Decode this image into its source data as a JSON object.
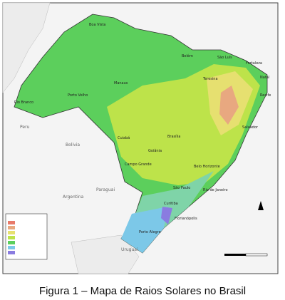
{
  "map": {
    "cities": [
      "Boa Vista",
      "Manaus",
      "Belém",
      "São Luís",
      "Fortaleza",
      "Natal",
      "Recife",
      "Salvador",
      "Teresina",
      "Porto Velho",
      "Rio Branco",
      "Cuiabá",
      "Goiânia",
      "Brasília",
      "Campo Grande",
      "Belo Horizonte",
      "Rio de Janeiro",
      "São Paulo",
      "Curitiba",
      "Florianópolis",
      "Porto Alegre"
    ],
    "countries": [
      "Peru",
      "Bolivia",
      "Paraguai",
      "Argentina",
      "Uruguai"
    ]
  },
  "caption": "Figura 1 – Mapa de Raios Solares no Brasil"
}
